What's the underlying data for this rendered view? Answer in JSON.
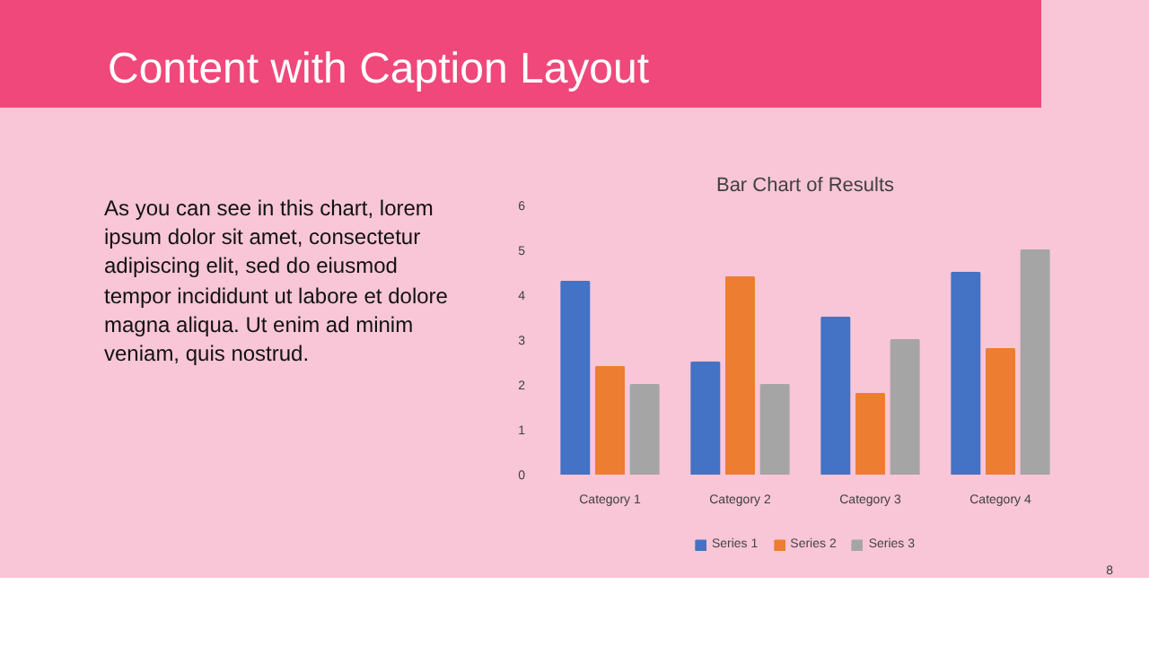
{
  "chart_data": {
    "type": "bar",
    "title": "Bar Chart of Results",
    "subtitle": "Content with Caption Layout",
    "categories": [
      "Category 1",
      "Category 2",
      "Category 3",
      "Category 4"
    ],
    "series": [
      {
        "name": "Series 1",
        "color": "#4472c4",
        "values": [
          4.3,
          2.5,
          3.5,
          4.5
        ]
      },
      {
        "name": "Series 2",
        "color": "#ed7d31",
        "values": [
          2.4,
          4.4,
          1.8,
          2.8
        ]
      },
      {
        "name": "Series 3",
        "color": "#a5a5a5",
        "values": [
          2,
          2,
          3,
          5
        ]
      }
    ],
    "ylim": [
      0,
      6
    ],
    "yticks": [
      0,
      1,
      2,
      3,
      4,
      5,
      6
    ],
    "legend": "bottom",
    "annotations": [
      "As you can see in this chart, lorem ipsum dolor sit amet, consectetur adipiscing elit, sed do eiusmod tempor incididunt ut labore et dolore magna aliqua. Ut enim ad minim veniam, quis nostrud.",
      "8"
    ]
  }
}
